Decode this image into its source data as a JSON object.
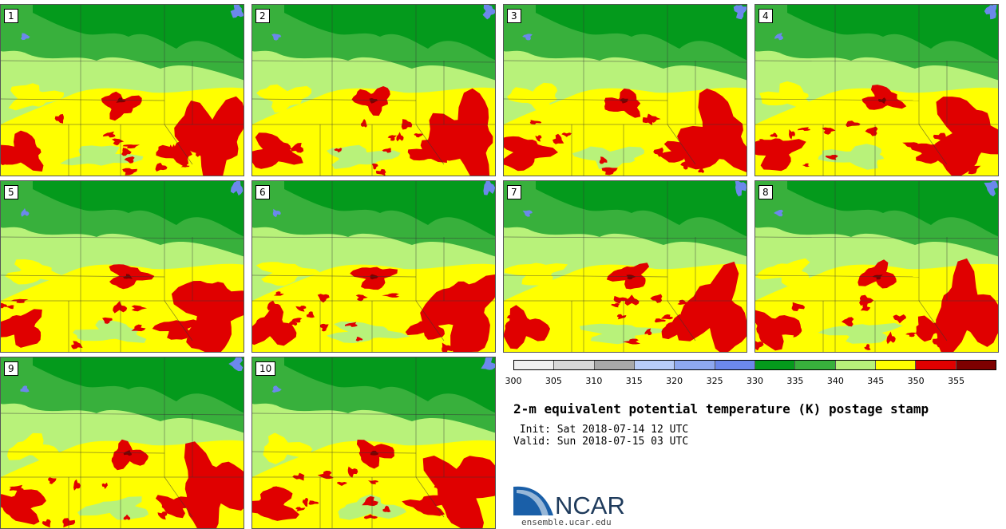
{
  "title": "2-m equivalent potential temperature (K) postage stamp",
  "init": " Init: Sat 2018-07-14 12 UTC",
  "valid": "Valid: Sun 2018-07-15 03 UTC",
  "panels": [
    "1",
    "2",
    "3",
    "4",
    "5",
    "6",
    "7",
    "8",
    "9",
    "10"
  ],
  "colorbar": {
    "colors": [
      "#f0f0f0",
      "#d8d8d8",
      "#a8a8a8",
      "#b8ccf8",
      "#8ea8f0",
      "#6c88ec",
      "#049a1c",
      "#38b03c",
      "#b8f27a",
      "#ffff00",
      "#e00000",
      "#7e0000"
    ],
    "ticks": [
      "300",
      "305",
      "310",
      "315",
      "320",
      "325",
      "330",
      "335",
      "340",
      "345",
      "350",
      "355"
    ]
  },
  "logo": {
    "text": "NCAR",
    "url": "ensemble.ucar.edu",
    "colors": {
      "blue": "#1a5fa8",
      "dark": "#1f3b5c"
    }
  }
}
